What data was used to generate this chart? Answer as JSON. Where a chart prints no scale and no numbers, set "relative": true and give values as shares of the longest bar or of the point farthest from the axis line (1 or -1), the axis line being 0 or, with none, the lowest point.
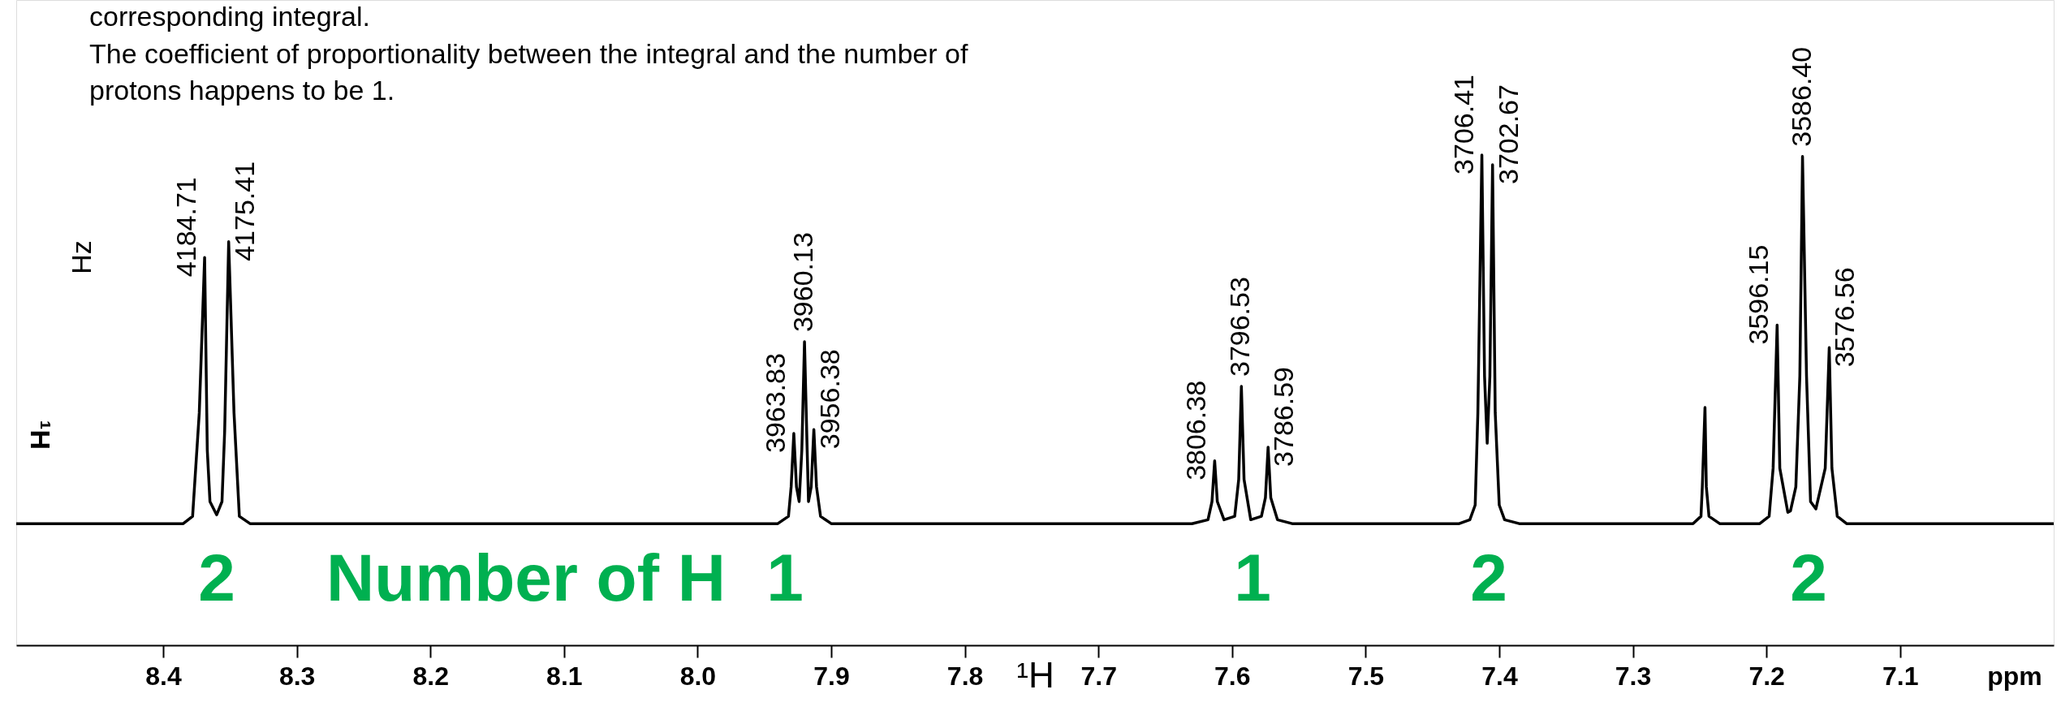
{
  "chart_data": {
    "type": "line",
    "relative": true,
    "tick_labels": "x",
    "xlabel": "¹H",
    "xlim": [
      8.51,
      6.985
    ],
    "xticks": [
      8.4,
      8.3,
      8.2,
      8.1,
      {
        "value": 8.0,
        "label": "8.0"
      },
      7.9,
      7.8,
      7.7,
      7.6,
      7.5,
      7.4,
      7.3,
      7.2,
      7.1
    ],
    "series": [
      {
        "color": "#000000",
        "x": [
          8.51,
          8.385,
          8.378,
          8.373,
          8.369,
          8.367,
          8.365,
          8.36,
          8.356,
          8.354,
          8.351,
          8.347,
          8.343,
          8.335,
          7.94,
          7.932,
          7.93,
          7.928,
          7.926,
          7.924,
          7.922,
          7.92,
          7.918,
          7.917,
          7.915,
          7.913,
          7.911,
          7.908,
          7.9,
          7.63,
          7.618,
          7.615,
          7.613,
          7.611,
          7.606,
          7.598,
          7.595,
          7.593,
          7.591,
          7.586,
          7.578,
          7.575,
          7.573,
          7.571,
          7.566,
          7.555,
          7.43,
          7.422,
          7.418,
          7.416,
          7.413,
          7.411,
          7.409,
          7.407,
          7.405,
          7.403,
          7.4,
          7.396,
          7.385,
          7.255,
          7.249,
          7.248,
          7.246,
          7.245,
          7.243,
          7.235,
          7.205,
          7.198,
          7.195,
          7.192,
          7.19,
          7.184,
          7.182,
          7.178,
          7.175,
          7.173,
          7.17,
          7.167,
          7.163,
          7.156,
          7.153,
          7.151,
          7.147,
          7.14,
          6.985
        ],
        "values": [
          0.248,
          0.248,
          0.263,
          0.474,
          0.791,
          0.398,
          0.293,
          0.266,
          0.293,
          0.436,
          0.823,
          0.474,
          0.263,
          0.248,
          0.248,
          0.263,
          0.323,
          0.432,
          0.323,
          0.293,
          0.398,
          0.619,
          0.398,
          0.293,
          0.323,
          0.44,
          0.323,
          0.263,
          0.248,
          0.248,
          0.256,
          0.293,
          0.376,
          0.293,
          0.256,
          0.263,
          0.338,
          0.528,
          0.338,
          0.256,
          0.263,
          0.301,
          0.404,
          0.301,
          0.256,
          0.248,
          0.248,
          0.256,
          0.286,
          0.474,
          1.0,
          0.549,
          0.412,
          0.549,
          0.98,
          0.474,
          0.286,
          0.256,
          0.248,
          0.248,
          0.263,
          0.323,
          0.485,
          0.323,
          0.263,
          0.248,
          0.248,
          0.263,
          0.361,
          0.653,
          0.361,
          0.271,
          0.274,
          0.323,
          0.549,
          0.997,
          0.549,
          0.293,
          0.278,
          0.361,
          0.607,
          0.361,
          0.263,
          0.248,
          0.248
        ]
      }
    ],
    "annotations": [
      "corresponding integral.",
      "The coefficient of proportionality between the integral and the number of",
      "protons happens to be 1.",
      "Hz",
      "¹H",
      "2",
      "Number of H",
      "1",
      "1",
      "2",
      "2",
      "ppm",
      {
        "text": "4184.71",
        "x": 8.369,
        "y": 0.791
      },
      {
        "text": "4175.41",
        "x": 8.351,
        "y": 0.823
      },
      {
        "text": "3963.83",
        "x": 7.928,
        "y": 0.432
      },
      {
        "text": "3960.13",
        "x": 7.92,
        "y": 0.619
      },
      {
        "text": "3956.38",
        "x": 7.913,
        "y": 0.44
      },
      {
        "text": "3806.38",
        "x": 7.613,
        "y": 0.376
      },
      {
        "text": "3796.53",
        "x": 7.593,
        "y": 0.528
      },
      {
        "text": "3786.59",
        "x": 7.573,
        "y": 0.404
      },
      {
        "text": "3706.41",
        "x": 7.413,
        "y": 1.0
      },
      {
        "text": "3702.67",
        "x": 7.405,
        "y": 0.98
      },
      {
        "text": "3596.15",
        "x": 7.192,
        "y": 0.653
      },
      {
        "text": "3586.40",
        "x": 7.173,
        "y": 0.997
      },
      {
        "text": "3576.56",
        "x": 7.153,
        "y": 0.607
      }
    ]
  }
}
